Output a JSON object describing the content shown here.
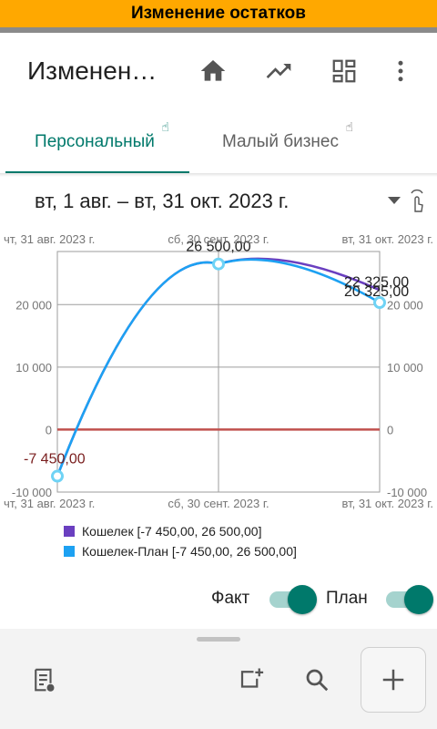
{
  "banner": {
    "text": "Изменение остатков"
  },
  "appbar": {
    "title": "Изменен…",
    "icons": [
      "home-icon",
      "trending-up-icon",
      "dashboard-icon",
      "more-vert-icon"
    ]
  },
  "tabs": [
    {
      "label": "Персональный",
      "active": true
    },
    {
      "label": "Малый бизнес",
      "active": false
    }
  ],
  "period": {
    "label": "вт, 1 авг. – вт, 31 окт. 2023 г."
  },
  "chart_data": {
    "type": "line",
    "x_ticks_top": [
      "чт, 31 авг. 2023 г.",
      "сб, 30 сент. 2023 г.",
      "вт, 31 окт. 2023 г."
    ],
    "x_ticks_bottom": [
      "чт, 31 авг. 2023 г.",
      "сб, 30 сент. 2023 г.",
      "вт, 31 окт. 2023 г."
    ],
    "y_ticks": [
      "20 000",
      "10 000",
      "0",
      "-10 000"
    ],
    "y_tick_values": [
      20000,
      10000,
      0,
      -10000
    ],
    "ylim": [
      -10000,
      28500
    ],
    "x_dates": [
      "2023-08-31",
      "2023-09-30",
      "2023-10-31"
    ],
    "series": [
      {
        "name": "Кошелек",
        "color": "#6a3fc0",
        "values": [
          -7450,
          26500,
          22325
        ]
      },
      {
        "name": "Кошелек-План",
        "color": "#1da1f2",
        "values": [
          -7450,
          26500,
          20325
        ]
      }
    ],
    "data_labels": [
      "-7 450,00",
      "26 500,00",
      "22 325,00",
      "20 325,00"
    ],
    "zero_line_color": "#c0504d",
    "grid": true
  },
  "legend": [
    {
      "text": "Кошелек [-7 450,00, 26 500,00]",
      "color": "#6a3fc0"
    },
    {
      "text": "Кошелек-План [-7 450,00, 26 500,00]",
      "color": "#1da1f2"
    }
  ],
  "toggles": [
    {
      "label": "Факт",
      "on": true
    },
    {
      "label": "План",
      "on": true
    }
  ],
  "bottom_actions": [
    "report-icon",
    "add-widget-icon",
    "search-icon",
    "add-icon"
  ]
}
